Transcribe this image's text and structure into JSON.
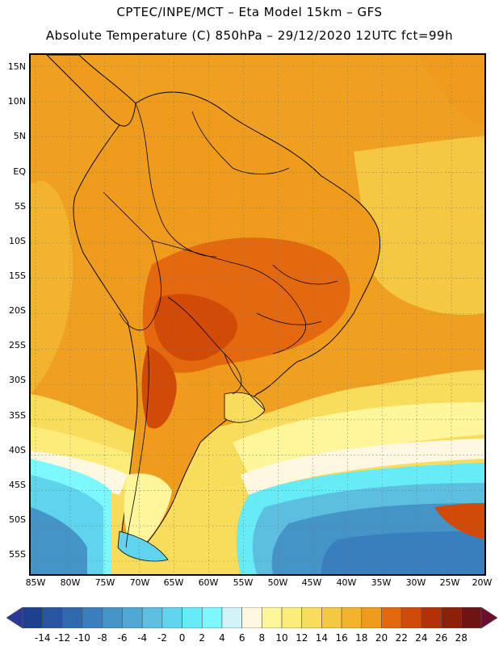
{
  "header": {
    "line1": "CPTEC/INPE/MCT –  Eta Model 15km – GFS",
    "line2": "Absolute Temperature (C) 850hPa – 29/12/2020 12UTC fct=99h"
  },
  "map": {
    "lat_labels": [
      "15N",
      "10N",
      "5N",
      "EQ",
      "5S",
      "10S",
      "15S",
      "20S",
      "25S",
      "30S",
      "35S",
      "40S",
      "45S",
      "50S",
      "55S"
    ],
    "lon_labels": [
      "85W",
      "80W",
      "75W",
      "70W",
      "65W",
      "60W",
      "55W",
      "50W",
      "45W",
      "40W",
      "35W",
      "30W",
      "25W",
      "20W"
    ],
    "lat_range": [
      15,
      -55
    ],
    "lon_range": [
      -85,
      -20
    ],
    "regions": [
      {
        "name": "southern-ocean-coldest",
        "temp_c": -10
      },
      {
        "name": "southern-ocean-cold",
        "temp_c": -6
      },
      {
        "name": "southern-ocean-cool",
        "temp_c": -2
      },
      {
        "name": "south-atlantic-cyan",
        "temp_c": 4
      },
      {
        "name": "subtropical-band",
        "temp_c": 10
      },
      {
        "name": "tropical-ocean",
        "temp_c": 16
      },
      {
        "name": "continent",
        "temp_c": 20
      },
      {
        "name": "central-south-america-hot",
        "temp_c": 22
      },
      {
        "name": "chaco-hot-core",
        "temp_c": 24
      }
    ]
  },
  "colorbar": {
    "labels": [
      "-14",
      "-12",
      "-10",
      "-8",
      "-6",
      "-4",
      "-2",
      "0",
      "2",
      "4",
      "6",
      "8",
      "10",
      "12",
      "14",
      "16",
      "18",
      "20",
      "22",
      "24",
      "26",
      "28"
    ],
    "colors": [
      "#1f3f8f",
      "#2855a0",
      "#2f6aad",
      "#3a7fbd",
      "#4594c8",
      "#50a8d4",
      "#5cbfe0",
      "#5fd4ec",
      "#66ecf6",
      "#7df8ff",
      "#d0f4fa",
      "#fff8e0",
      "#fff59a",
      "#fcec7a",
      "#f8dc5c",
      "#f4c842",
      "#f2b42c",
      "#ef9c1c",
      "#e4680e",
      "#d24a08",
      "#b03206",
      "#8c2008",
      "#6e1412"
    ],
    "under_color": "#2a3a9a",
    "over_color": "#6a0f2e"
  }
}
